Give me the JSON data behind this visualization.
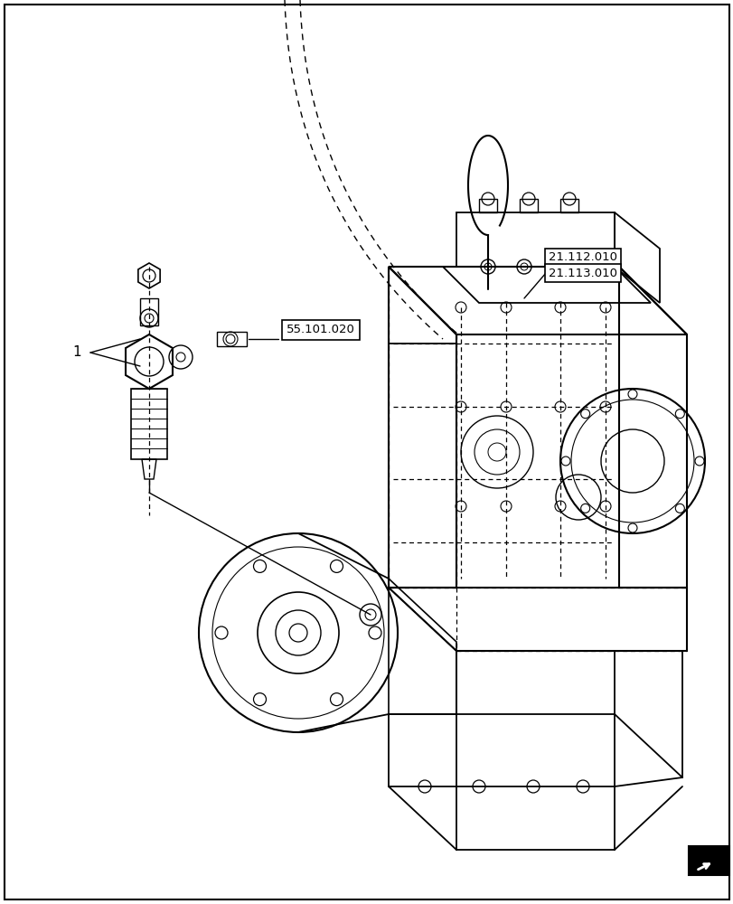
{
  "title": "",
  "bg_color": "#ffffff",
  "line_color": "#000000",
  "label_55101020": "55.101.020",
  "label_21112010": "21.112.010",
  "label_21113010": "21.113.010",
  "label_1": "1",
  "figsize": [
    8.12,
    10.0
  ],
  "dpi": 100
}
